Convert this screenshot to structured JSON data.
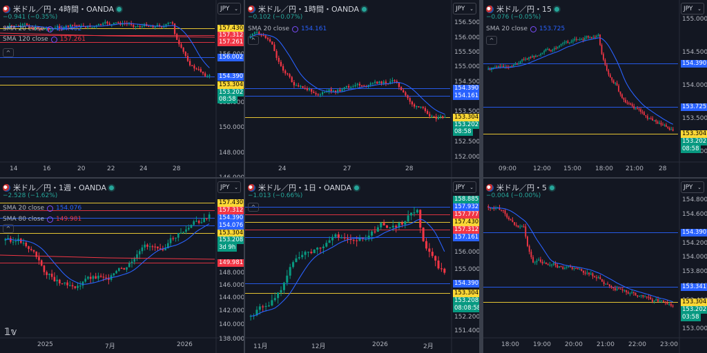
{
  "panels": [
    {
      "title": "米ドル／円・4時間・OANDA",
      "change": "−0.941 (−0.35%)",
      "indicators": [
        {
          "label": "SMA 20 close",
          "value": "154.402"
        },
        {
          "label": "SMA 120 close",
          "value": "157.261"
        }
      ],
      "currency": "JPY",
      "y_ticks": [
        "156.000",
        "154.000",
        "152.000",
        "150.000",
        "148.000",
        "146.000"
      ],
      "x_ticks": [
        "14",
        "16",
        "20",
        "22",
        "24",
        "28"
      ],
      "price_labels": [
        {
          "text": "157.430",
          "color": "#fdd835",
          "fg": "#000"
        },
        {
          "text": "157.312",
          "color": "#f23645",
          "fg": "#fff"
        },
        {
          "text": "157.261",
          "color": "#f23645",
          "fg": "#fff"
        },
        {
          "text": "156.002",
          "color": "#2962ff",
          "fg": "#fff"
        },
        {
          "text": "154.390",
          "color": "#2962ff",
          "fg": "#fff"
        },
        {
          "text": "153.304",
          "color": "#fdd835",
          "fg": "#000"
        },
        {
          "text": "153.202",
          "color": "#089981",
          "fg": "#fff"
        },
        {
          "text": "08:58",
          "color": "#089981",
          "fg": "#fff"
        }
      ]
    },
    {
      "title": "米ドル／円・1時間・OANDA",
      "change": "−0.102 (−0.07%)",
      "indicators": [
        {
          "label": "SMA 20 close",
          "value": "154.161"
        }
      ],
      "currency": "JPY",
      "y_ticks": [
        "156.500",
        "156.000",
        "155.500",
        "155.000",
        "154.500",
        "154.000",
        "153.500",
        "153.000",
        "152.500",
        "152.000"
      ],
      "x_ticks": [
        "24",
        "27",
        "28"
      ],
      "price_labels": [
        {
          "text": "154.390",
          "color": "#2962ff",
          "fg": "#fff"
        },
        {
          "text": "154.161",
          "color": "#2962ff",
          "fg": "#fff"
        },
        {
          "text": "153.304",
          "color": "#fdd835",
          "fg": "#000"
        },
        {
          "text": "153.202",
          "color": "#089981",
          "fg": "#fff"
        },
        {
          "text": "08:58",
          "color": "#089981",
          "fg": "#fff"
        }
      ]
    },
    {
      "title": "米ドル／円・15",
      "change": "−0.076 (−0.05%)",
      "indicators": [
        {
          "label": "SMA 20 close",
          "value": "153.725"
        }
      ],
      "currency": "JPY",
      "y_ticks": [
        "155.000",
        "154.500",
        "154.000",
        "153.500",
        "153.000"
      ],
      "x_ticks": [
        "09:00",
        "12:00",
        "15:00",
        "18:00",
        "21:00",
        "28"
      ],
      "price_labels": [
        {
          "text": "154.390",
          "color": "#2962ff",
          "fg": "#fff"
        },
        {
          "text": "153.725",
          "color": "#2962ff",
          "fg": "#fff"
        },
        {
          "text": "153.304",
          "color": "#fdd835",
          "fg": "#000"
        },
        {
          "text": "153.202",
          "color": "#089981",
          "fg": "#fff"
        },
        {
          "text": "08:58",
          "color": "#089981",
          "fg": "#fff"
        }
      ]
    },
    {
      "title": "米ドル／円・1週・OANDA",
      "change": "−2.528 (−1.62%)",
      "indicators": [
        {
          "label": "SMA 20 close",
          "value": "154.076"
        },
        {
          "label": "SMA 80 close",
          "value": "149.981"
        }
      ],
      "currency": "JPY",
      "y_ticks": [
        "148.000",
        "146.000",
        "144.000",
        "142.000",
        "140.000",
        "138.000"
      ],
      "x_ticks": [
        "2025",
        "7月",
        "2026"
      ],
      "price_labels": [
        {
          "text": "157.430",
          "color": "#fdd835",
          "fg": "#000"
        },
        {
          "text": "157.312",
          "color": "#f23645",
          "fg": "#fff"
        },
        {
          "text": "154.390",
          "color": "#2962ff",
          "fg": "#fff"
        },
        {
          "text": "154.076",
          "color": "#2962ff",
          "fg": "#fff"
        },
        {
          "text": "153.304",
          "color": "#fdd835",
          "fg": "#000"
        },
        {
          "text": "153.208",
          "color": "#089981",
          "fg": "#fff"
        },
        {
          "text": "3d 9h",
          "color": "#089981",
          "fg": "#fff"
        },
        {
          "text": "149.981",
          "color": "#f23645",
          "fg": "#fff"
        }
      ]
    },
    {
      "title": "米ドル／円・1日・OANDA",
      "change": "−1.013 (−0.66%)",
      "indicators": [],
      "currency": "JPY",
      "y_ticks": [
        "156.000",
        "155.000",
        "154.000",
        "152.200",
        "151.400"
      ],
      "x_ticks": [
        "11月",
        "12月",
        "2026",
        "2月"
      ],
      "price_labels": [
        {
          "text": "158.885",
          "color": "#089981",
          "fg": "#fff"
        },
        {
          "text": "157.932",
          "color": "#2962ff",
          "fg": "#fff"
        },
        {
          "text": "157.777",
          "color": "#f23645",
          "fg": "#fff"
        },
        {
          "text": "157.430",
          "color": "#fdd835",
          "fg": "#000"
        },
        {
          "text": "157.312",
          "color": "#f23645",
          "fg": "#fff"
        },
        {
          "text": "157.161",
          "color": "#2962ff",
          "fg": "#fff"
        },
        {
          "text": "154.390",
          "color": "#2962ff",
          "fg": "#fff"
        },
        {
          "text": "153.304",
          "color": "#fdd835",
          "fg": "#000"
        },
        {
          "text": "153.208",
          "color": "#089981",
          "fg": "#fff"
        },
        {
          "text": "08:08:58",
          "color": "#089981",
          "fg": "#fff"
        }
      ]
    },
    {
      "title": "米ドル／円・5",
      "change": "−0.004 (−0.00%)",
      "indicators": [],
      "currency": "JPY",
      "y_ticks": [
        "154.800",
        "154.600",
        "154.200",
        "154.000",
        "153.800",
        "153.600",
        "153.400",
        "153.000"
      ],
      "x_ticks": [
        "18:00",
        "19:00",
        "20:00",
        "21:00",
        "22:00",
        "23:00"
      ],
      "price_labels": [
        {
          "text": "154.390",
          "color": "#2962ff",
          "fg": "#fff"
        },
        {
          "text": "153.341",
          "color": "#2962ff",
          "fg": "#fff"
        },
        {
          "text": "153.304",
          "color": "#fdd835",
          "fg": "#000"
        },
        {
          "text": "153.202",
          "color": "#089981",
          "fg": "#fff"
        },
        {
          "text": "03:58",
          "color": "#089981",
          "fg": "#fff"
        }
      ]
    }
  ],
  "colors": {
    "up": "#089981",
    "down": "#f23645",
    "sma": "#2962ff",
    "sma_long": "#f23645",
    "support": "#fdd835",
    "resist": "#2962ff"
  }
}
